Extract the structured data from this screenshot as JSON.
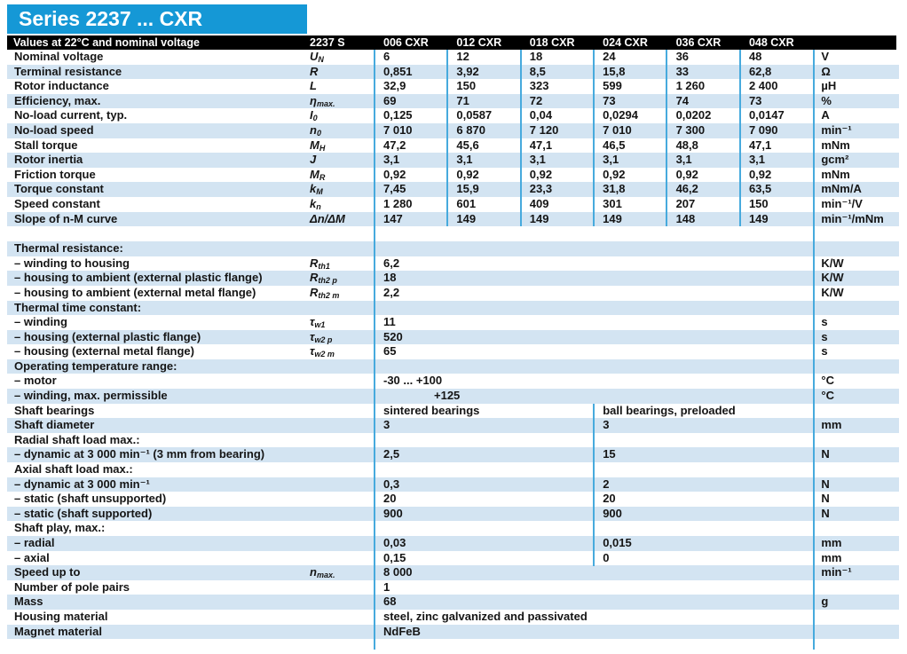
{
  "title": "Series 2237 ... CXR",
  "header": {
    "caption": "Values at 22°C and nominal voltage",
    "series_label": "2237 S",
    "columns": [
      "006 CXR",
      "012 CXR",
      "018 CXR",
      "024 CXR",
      "036 CXR",
      "048 CXR"
    ]
  },
  "colors": {
    "accent_cyan": "#1598d6",
    "stripe_blue": "#d3e4f2",
    "divider_blue": "#47aadd",
    "header_bar": "#000000",
    "text": "#151515"
  },
  "table": {
    "block1": [
      {
        "label": "Nominal voltage",
        "symbol": {
          "m": "U",
          "s": "N"
        },
        "kind": "six",
        "values": [
          "6",
          "12",
          "18",
          "24",
          "36",
          "48"
        ],
        "unit": "V"
      },
      {
        "label": "Terminal resistance",
        "symbol": {
          "m": "R"
        },
        "kind": "six",
        "values": [
          "0,851",
          "3,92",
          "8,5",
          "15,8",
          "33",
          "62,8"
        ],
        "unit": "Ω"
      },
      {
        "label": "Rotor inductance",
        "symbol": {
          "m": "L"
        },
        "kind": "six",
        "values": [
          "32,9",
          "150",
          "323",
          "599",
          "1 260",
          "2 400"
        ],
        "unit": "µH"
      },
      {
        "label": "Efficiency, max.",
        "symbol": {
          "m": "η",
          "s": "max."
        },
        "kind": "six",
        "values": [
          "69",
          "71",
          "72",
          "73",
          "74",
          "73"
        ],
        "unit": "%"
      },
      {
        "label": "No-load current, typ.",
        "symbol": {
          "m": "I",
          "s": "0"
        },
        "kind": "six",
        "values": [
          "0,125",
          "0,0587",
          "0,04",
          "0,0294",
          "0,0202",
          "0,0147"
        ],
        "unit": "A"
      },
      {
        "label": "No-load speed",
        "symbol": {
          "m": "n",
          "s": "0"
        },
        "kind": "six",
        "values": [
          "7 010",
          "6 870",
          "7 120",
          "7 010",
          "7 300",
          "7 090"
        ],
        "unit": "min⁻¹"
      },
      {
        "label": "Stall torque",
        "symbol": {
          "m": "M",
          "s": "H"
        },
        "kind": "six",
        "values": [
          "47,2",
          "45,6",
          "47,1",
          "46,5",
          "48,8",
          "47,1"
        ],
        "unit": "mNm"
      },
      {
        "label": "Rotor inertia",
        "symbol": {
          "m": "J"
        },
        "kind": "six",
        "values": [
          "3,1",
          "3,1",
          "3,1",
          "3,1",
          "3,1",
          "3,1"
        ],
        "unit": "gcm²"
      },
      {
        "label": "Friction torque",
        "symbol": {
          "m": "M",
          "s": "R"
        },
        "kind": "six",
        "values": [
          "0,92",
          "0,92",
          "0,92",
          "0,92",
          "0,92",
          "0,92"
        ],
        "unit": "mNm"
      },
      {
        "label": "Torque constant",
        "symbol": {
          "m": "k",
          "s": "M"
        },
        "kind": "six",
        "values": [
          "7,45",
          "15,9",
          "23,3",
          "31,8",
          "46,2",
          "63,5"
        ],
        "unit": "mNm/A"
      },
      {
        "label": "Speed constant",
        "symbol": {
          "m": "k",
          "s": "n"
        },
        "kind": "six",
        "values": [
          "1 280",
          "601",
          "409",
          "301",
          "207",
          "150"
        ],
        "unit": "min⁻¹/V"
      },
      {
        "label": "Slope of n-M curve",
        "symbol": {
          "m": "Δn/ΔM"
        },
        "kind": "six",
        "values": [
          "147",
          "149",
          "149",
          "149",
          "148",
          "149"
        ],
        "unit": "min⁻¹/mNm"
      }
    ],
    "block2": [
      {
        "label": "Thermal resistance:",
        "kind": "head"
      },
      {
        "label": "– winding to housing",
        "symbol": {
          "m": "R",
          "s": "th1"
        },
        "kind": "span",
        "values": "6,2",
        "unit": "K/W"
      },
      {
        "label": "– housing to ambient (external plastic flange)",
        "symbol": {
          "m": "R",
          "s": "th2 p"
        },
        "kind": "span",
        "values": "18",
        "unit": "K/W"
      },
      {
        "label": "– housing to ambient (external metal flange)",
        "symbol": {
          "m": "R",
          "s": "th2 m"
        },
        "kind": "span",
        "values": "2,2",
        "unit": "K/W"
      },
      {
        "label": "Thermal time constant:",
        "kind": "head"
      },
      {
        "label": "– winding",
        "symbol": {
          "m": "τ",
          "s": "w1"
        },
        "kind": "span",
        "values": "11",
        "unit": "s"
      },
      {
        "label": "– housing (external plastic flange)",
        "symbol": {
          "m": "τ",
          "s": "w2 p"
        },
        "kind": "span",
        "values": "520",
        "unit": "s"
      },
      {
        "label": "– housing (external metal flange)",
        "symbol": {
          "m": "τ",
          "s": "w2 m"
        },
        "kind": "span",
        "values": "65",
        "unit": "s"
      },
      {
        "label": "Operating temperature range:",
        "kind": "head"
      },
      {
        "label": "– motor",
        "kind": "span",
        "values": "-30  ... +100",
        "unit": "°C"
      },
      {
        "label": "– winding, max. permissible",
        "kind": "indent",
        "values": "+125",
        "unit": "°C"
      },
      {
        "label": "Shaft bearings",
        "kind": "split",
        "values": [
          "sintered bearings",
          "ball bearings, preloaded"
        ],
        "unit": ""
      },
      {
        "label": "Shaft diameter",
        "kind": "split",
        "values": [
          "3",
          "3"
        ],
        "unit": "mm"
      },
      {
        "label": "Radial shaft load max.:",
        "kind": "head"
      },
      {
        "label": "– dynamic at 3 000 min⁻¹ (3 mm from bearing)",
        "kind": "split",
        "values": [
          "2,5",
          "15"
        ],
        "unit": "N"
      },
      {
        "label": "Axial shaft load max.:",
        "kind": "head"
      },
      {
        "label": "– dynamic at 3 000 min⁻¹",
        "kind": "split",
        "values": [
          "0,3",
          "2"
        ],
        "unit": "N"
      },
      {
        "label": "– static (shaft unsupported)",
        "kind": "split",
        "values": [
          "20",
          "20"
        ],
        "unit": "N"
      },
      {
        "label": "– static (shaft supported)",
        "kind": "split",
        "values": [
          "900",
          "900"
        ],
        "unit": "N"
      },
      {
        "label": "Shaft play, max.:",
        "kind": "head"
      },
      {
        "label": "– radial",
        "kind": "split",
        "values": [
          "0,03",
          "0,015"
        ],
        "unit": "mm"
      },
      {
        "label": "– axial",
        "kind": "split",
        "values": [
          "0,15",
          "0"
        ],
        "unit": "mm"
      },
      {
        "label": "Speed up to",
        "symbol": {
          "m": "n",
          "s": "max."
        },
        "kind": "span",
        "values": "8 000",
        "unit": "min⁻¹"
      },
      {
        "label": "Number of pole pairs",
        "kind": "span",
        "values": "1",
        "unit": ""
      },
      {
        "label": "Mass",
        "kind": "span",
        "values": "68",
        "unit": "g"
      },
      {
        "label": "Housing material",
        "kind": "span",
        "values": "steel, zinc galvanized and passivated",
        "unit": ""
      },
      {
        "label": "Magnet material",
        "kind": "span",
        "values": "NdFeB",
        "unit": ""
      }
    ]
  }
}
